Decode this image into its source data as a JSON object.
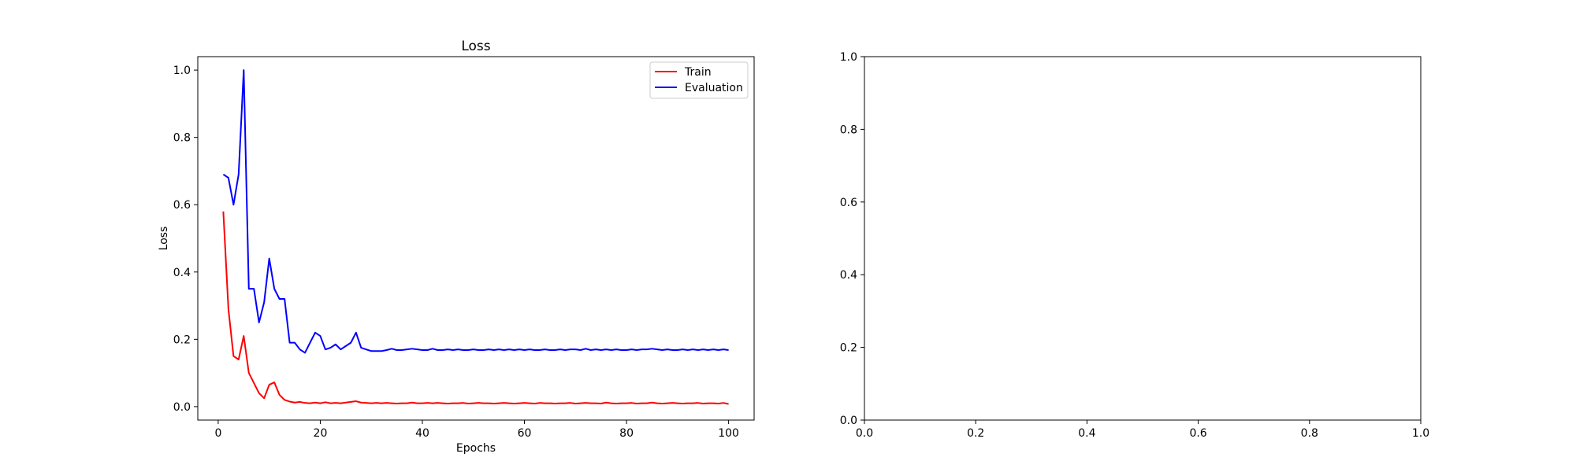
{
  "chart_data": [
    {
      "type": "line",
      "title": "Loss",
      "xlabel": "Epochs",
      "ylabel": "Loss",
      "xlim": [
        -4,
        105
      ],
      "ylim": [
        -0.04,
        1.04
      ],
      "xticks": [
        0,
        20,
        40,
        60,
        80,
        100
      ],
      "yticks": [
        0.0,
        0.2,
        0.4,
        0.6,
        0.8,
        1.0
      ],
      "xtick_labels": [
        "0",
        "20",
        "40",
        "60",
        "80",
        "100"
      ],
      "ytick_labels": [
        "0.0",
        "0.2",
        "0.4",
        "0.6",
        "0.8",
        "1.0"
      ],
      "grid": false,
      "legend_position": "upper right",
      "x": [
        1,
        2,
        3,
        4,
        5,
        6,
        7,
        8,
        9,
        10,
        11,
        12,
        13,
        14,
        15,
        16,
        17,
        18,
        19,
        20,
        21,
        22,
        23,
        24,
        25,
        26,
        27,
        28,
        29,
        30,
        31,
        32,
        33,
        34,
        35,
        36,
        37,
        38,
        39,
        40,
        41,
        42,
        43,
        44,
        45,
        46,
        47,
        48,
        49,
        50,
        51,
        52,
        53,
        54,
        55,
        56,
        57,
        58,
        59,
        60,
        61,
        62,
        63,
        64,
        65,
        66,
        67,
        68,
        69,
        70,
        71,
        72,
        73,
        74,
        75,
        76,
        77,
        78,
        79,
        80,
        81,
        82,
        83,
        84,
        85,
        86,
        87,
        88,
        89,
        90,
        91,
        92,
        93,
        94,
        95,
        96,
        97,
        98,
        99,
        100
      ],
      "series": [
        {
          "name": "Train",
          "color": "#ff0000",
          "values": [
            0.58,
            0.29,
            0.15,
            0.14,
            0.21,
            0.1,
            0.07,
            0.04,
            0.025,
            0.065,
            0.072,
            0.035,
            0.02,
            0.015,
            0.012,
            0.014,
            0.011,
            0.01,
            0.012,
            0.01,
            0.013,
            0.01,
            0.011,
            0.01,
            0.012,
            0.014,
            0.016,
            0.012,
            0.011,
            0.01,
            0.011,
            0.01,
            0.011,
            0.01,
            0.009,
            0.01,
            0.01,
            0.012,
            0.01,
            0.01,
            0.011,
            0.01,
            0.011,
            0.01,
            0.009,
            0.01,
            0.01,
            0.011,
            0.009,
            0.01,
            0.011,
            0.01,
            0.01,
            0.009,
            0.01,
            0.011,
            0.01,
            0.009,
            0.01,
            0.011,
            0.01,
            0.009,
            0.011,
            0.01,
            0.01,
            0.009,
            0.01,
            0.01,
            0.011,
            0.009,
            0.01,
            0.011,
            0.01,
            0.01,
            0.009,
            0.012,
            0.01,
            0.009,
            0.01,
            0.01,
            0.011,
            0.009,
            0.01,
            0.01,
            0.012,
            0.01,
            0.009,
            0.01,
            0.011,
            0.01,
            0.009,
            0.01,
            0.01,
            0.011,
            0.009,
            0.01,
            0.01,
            0.009,
            0.011,
            0.008
          ]
        },
        {
          "name": "Evaluation",
          "color": "#0000ff",
          "values": [
            0.69,
            0.68,
            0.6,
            0.69,
            1.0,
            0.35,
            0.35,
            0.25,
            0.31,
            0.44,
            0.35,
            0.32,
            0.32,
            0.19,
            0.19,
            0.17,
            0.16,
            0.19,
            0.22,
            0.21,
            0.17,
            0.175,
            0.185,
            0.17,
            0.18,
            0.19,
            0.22,
            0.175,
            0.17,
            0.165,
            0.165,
            0.165,
            0.168,
            0.172,
            0.168,
            0.168,
            0.17,
            0.172,
            0.17,
            0.168,
            0.168,
            0.172,
            0.168,
            0.168,
            0.17,
            0.168,
            0.17,
            0.168,
            0.168,
            0.17,
            0.168,
            0.168,
            0.17,
            0.168,
            0.17,
            0.168,
            0.17,
            0.168,
            0.17,
            0.168,
            0.17,
            0.168,
            0.168,
            0.17,
            0.168,
            0.168,
            0.17,
            0.168,
            0.17,
            0.17,
            0.168,
            0.172,
            0.168,
            0.17,
            0.168,
            0.17,
            0.168,
            0.17,
            0.168,
            0.168,
            0.17,
            0.168,
            0.17,
            0.17,
            0.172,
            0.17,
            0.168,
            0.17,
            0.168,
            0.168,
            0.17,
            0.168,
            0.17,
            0.168,
            0.17,
            0.168,
            0.17,
            0.168,
            0.17,
            0.168
          ]
        }
      ]
    },
    {
      "type": "line",
      "title": "",
      "xlabel": "",
      "ylabel": "",
      "xlim": [
        0.0,
        1.0
      ],
      "ylim": [
        0.0,
        1.0
      ],
      "xticks": [
        0.0,
        0.2,
        0.4,
        0.6,
        0.8,
        1.0
      ],
      "yticks": [
        0.0,
        0.2,
        0.4,
        0.6,
        0.8,
        1.0
      ],
      "xtick_labels": [
        "0.0",
        "0.2",
        "0.4",
        "0.6",
        "0.8",
        "1.0"
      ],
      "ytick_labels": [
        "0.0",
        "0.2",
        "0.4",
        "0.6",
        "0.8",
        "1.0"
      ],
      "grid": false,
      "series": []
    }
  ]
}
